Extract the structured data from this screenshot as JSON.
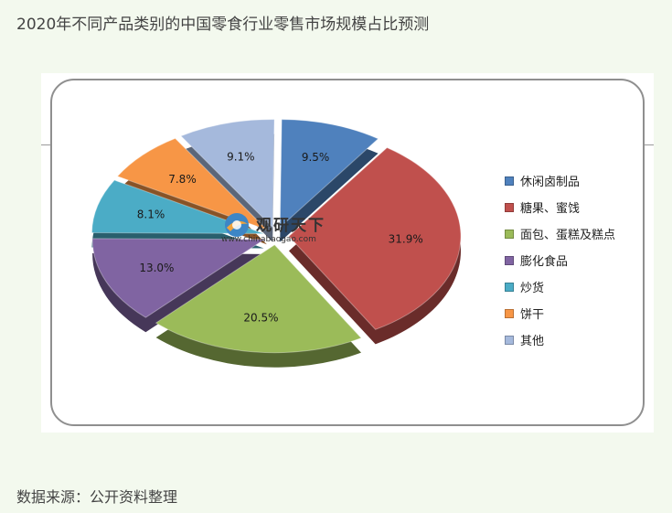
{
  "page": {
    "title": "2020年不同产品类别的中国零食行业零售市场规模占比预测",
    "source": "数据来源：公开资料整理"
  },
  "watermark": {
    "brand": "观研天下",
    "url": "www.chinabaogao.com"
  },
  "chart_data": {
    "type": "pie",
    "title": "",
    "unit": "%",
    "legend_position": "right",
    "slices": [
      {
        "name": "休闲卤制品",
        "value": 9.5,
        "label": "9.5%",
        "color": "#4f81bd"
      },
      {
        "name": "糖果、蜜饯",
        "value": 31.9,
        "label": "31.9%",
        "color": "#c0504d"
      },
      {
        "name": "面包、蛋糕及糕点",
        "value": 20.5,
        "label": "20.5%",
        "color": "#9bbb59"
      },
      {
        "name": "膨化食品",
        "value": 13.0,
        "label": "13.0%",
        "color": "#8064a2"
      },
      {
        "name": "炒货",
        "value": 8.1,
        "label": "8.1%",
        "color": "#4bacc6"
      },
      {
        "name": "饼干",
        "value": 7.8,
        "label": "7.8%",
        "color": "#f79646"
      },
      {
        "name": "其他",
        "value": 9.1,
        "label": "9.1%",
        "color": "#a5b9dc"
      }
    ]
  }
}
